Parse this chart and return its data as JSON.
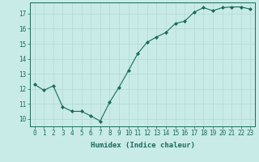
{
  "x": [
    0,
    1,
    2,
    3,
    4,
    5,
    6,
    7,
    8,
    9,
    10,
    11,
    12,
    13,
    14,
    15,
    16,
    17,
    18,
    19,
    20,
    21,
    22,
    23
  ],
  "y": [
    12.3,
    11.9,
    12.2,
    10.8,
    10.5,
    10.5,
    10.2,
    9.85,
    11.1,
    12.1,
    13.2,
    14.35,
    15.1,
    15.45,
    15.75,
    16.35,
    16.5,
    17.1,
    17.4,
    17.2,
    17.4,
    17.45,
    17.45,
    17.3
  ],
  "line_color": "#1a6b5a",
  "marker": "D",
  "marker_size": 2.0,
  "bg_color": "#c8ebe8",
  "grid_color": "#b0d8d4",
  "xlabel": "Humidex (Indice chaleur)",
  "xlim": [
    -0.5,
    23.5
  ],
  "ylim": [
    9.5,
    17.75
  ],
  "yticks": [
    10,
    11,
    12,
    13,
    14,
    15,
    16,
    17
  ],
  "xticks": [
    0,
    1,
    2,
    3,
    4,
    5,
    6,
    7,
    8,
    9,
    10,
    11,
    12,
    13,
    14,
    15,
    16,
    17,
    18,
    19,
    20,
    21,
    22,
    23
  ],
  "tick_color": "#1a6b5a",
  "xlabel_fontsize": 6.5,
  "tick_fontsize": 5.5
}
